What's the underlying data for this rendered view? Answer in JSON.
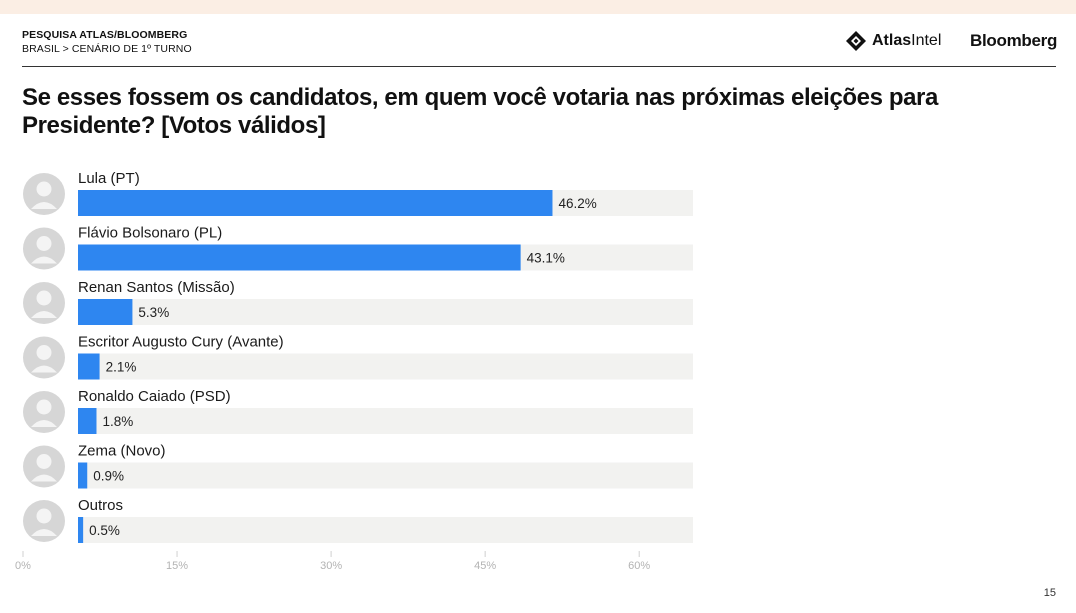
{
  "header": {
    "source_label": "PESQUISA ATLAS/BLOOMBERG",
    "breadcrumb": "BRASIL > CENÁRIO DE 1º TURNO",
    "logo_atlas_bold": "Atlas",
    "logo_atlas_regular": "Intel",
    "logo_bloomberg": "Bloomberg"
  },
  "question": "Se esses fossem os candidatos, em quem você votaria nas próximas eleições para Presidente? [Votos válidos]",
  "page_number": "15",
  "colors": {
    "bar": "#2e86f0",
    "track": "#f2f2f0",
    "axis_text": "#b3b3b3",
    "avatar_placeholder": "#d6d6d6"
  },
  "chart_data": {
    "type": "bar",
    "orientation": "horizontal",
    "title": "",
    "xlabel": "",
    "ylabel": "",
    "xlim": [
      0,
      65
    ],
    "ticks": [
      0,
      15,
      30,
      45,
      60
    ],
    "tick_labels": [
      "0%",
      "15%",
      "30%",
      "45%",
      "60%"
    ],
    "grid": false,
    "categories": [
      "Lula (PT)",
      "Flávio Bolsonaro (PL)",
      "Renan Santos (Missão)",
      "Escritor Augusto Cury (Avante)",
      "Ronaldo Caiado (PSD)",
      "Zema (Novo)",
      "Outros"
    ],
    "values": [
      46.2,
      43.1,
      5.3,
      2.1,
      1.8,
      0.9,
      0.5
    ],
    "value_labels": [
      "46.2%",
      "43.1%",
      "5.3%",
      "2.1%",
      "1.8%",
      "0.9%",
      "0.5%"
    ]
  }
}
